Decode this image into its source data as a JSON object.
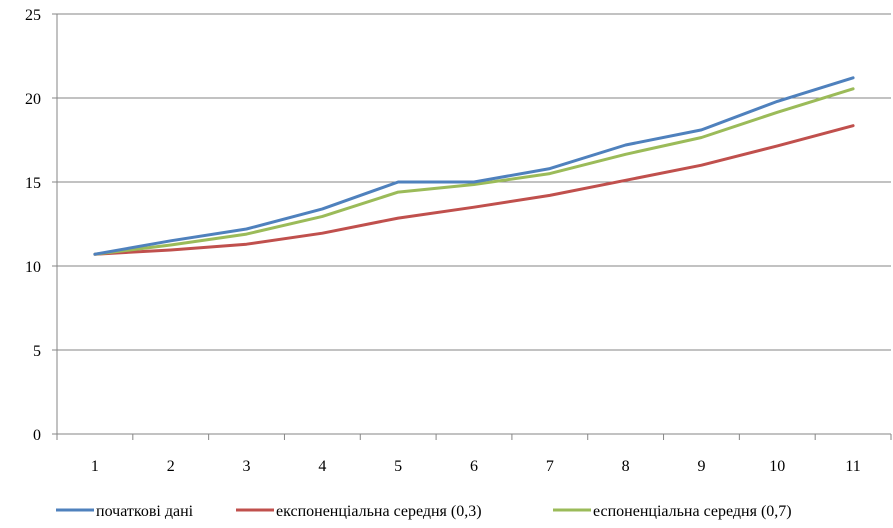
{
  "chart_data": {
    "type": "line",
    "title": "",
    "xlabel": "",
    "ylabel": "",
    "categories": [
      "1",
      "2",
      "3",
      "4",
      "5",
      "6",
      "7",
      "8",
      "9",
      "10",
      "11"
    ],
    "ylim": [
      0,
      25
    ],
    "yticks": [
      "0",
      "5",
      "10",
      "15",
      "20",
      "25"
    ],
    "grid": true,
    "legend_position": "bottom",
    "series": [
      {
        "name": "початкові дані",
        "color": "#4F81BD",
        "values": [
          10.7,
          11.5,
          12.2,
          13.4,
          15.0,
          15.0,
          15.8,
          17.2,
          18.1,
          19.8,
          21.2
        ]
      },
      {
        "name": "експоненціальна середня (0,3)",
        "color": "#C0504D",
        "values": [
          10.7,
          10.95,
          11.3,
          11.95,
          12.85,
          13.5,
          14.2,
          15.1,
          16.0,
          17.15,
          18.35
        ]
      },
      {
        "name": "еспоненціальна середня (0,7)",
        "color": "#9BBB59",
        "values": [
          10.7,
          11.25,
          11.9,
          12.95,
          14.4,
          14.85,
          15.5,
          16.65,
          17.65,
          19.15,
          20.55
        ]
      }
    ]
  }
}
